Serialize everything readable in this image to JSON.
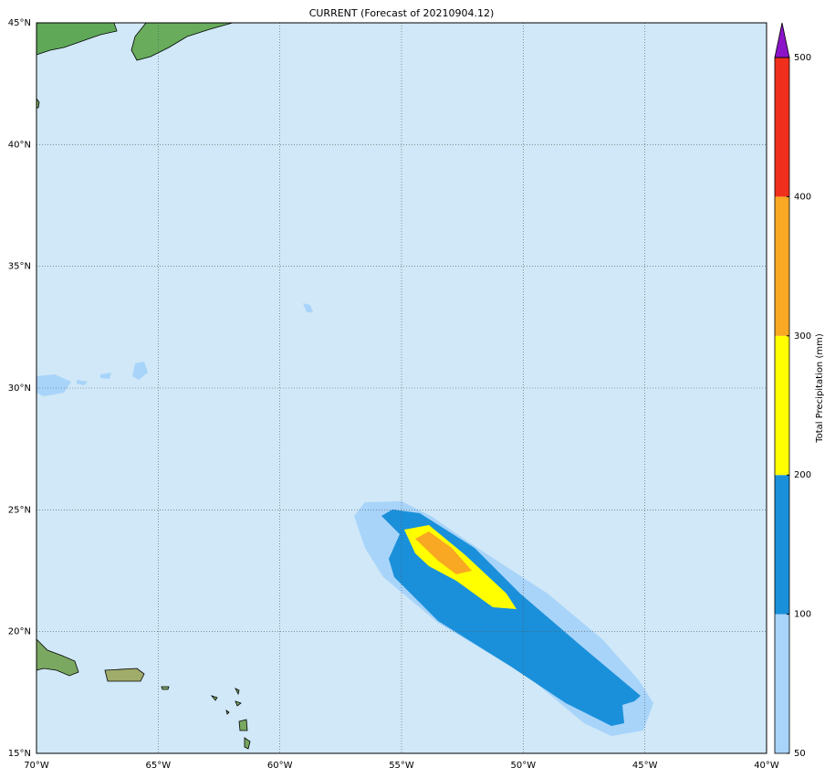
{
  "title": "CURRENT (Forecast of 20210904.12)",
  "map": {
    "xlim": [
      -70,
      -40
    ],
    "ylim": [
      15,
      45
    ],
    "xticks": [
      {
        "value": -70,
        "label": "70°W"
      },
      {
        "value": -65,
        "label": "65°W"
      },
      {
        "value": -60,
        "label": "60°W"
      },
      {
        "value": -55,
        "label": "55°W"
      },
      {
        "value": -50,
        "label": "50°W"
      },
      {
        "value": -45,
        "label": "45°W"
      },
      {
        "value": -40,
        "label": "40°W"
      }
    ],
    "yticks": [
      {
        "value": 15,
        "label": "15°N"
      },
      {
        "value": 20,
        "label": "20°N"
      },
      {
        "value": 25,
        "label": "25°N"
      },
      {
        "value": 30,
        "label": "30°N"
      },
      {
        "value": 35,
        "label": "35°N"
      },
      {
        "value": 40,
        "label": "40°N"
      },
      {
        "value": 45,
        "label": "45°N"
      }
    ],
    "grid": true,
    "colorbar": {
      "label": "Total Precipitation (mm)",
      "levels": [
        50,
        100,
        200,
        300,
        400,
        500
      ],
      "colors": [
        "#a8d4fa",
        "#1a90da",
        "#ffff00",
        "#f8a822",
        "#f0301c"
      ],
      "extend_color": "#8c14c8"
    }
  }
}
